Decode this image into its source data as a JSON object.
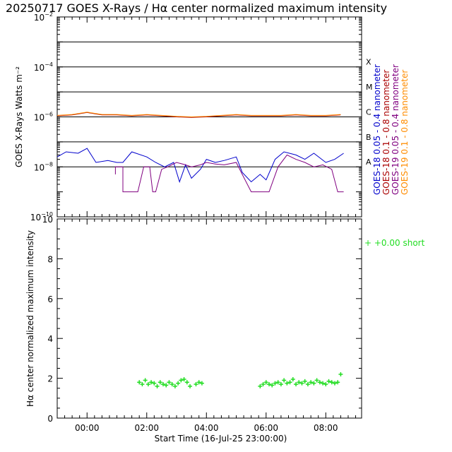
{
  "title": "20250717 GOES X-Rays / Hα center normalized maximum intensity",
  "chart_data": [
    {
      "type": "line",
      "name": "goes-xray-flux",
      "ylabel": "GOES X-Rays Watts m⁻²",
      "yscale": "log",
      "ylim": [
        1e-10,
        0.01
      ],
      "xlim": [
        -1.0,
        9.2
      ],
      "y_ticks": [
        {
          "exp": -10,
          "label": "10",
          "sup": "−10"
        },
        {
          "exp": -8,
          "label": "10",
          "sup": "−8"
        },
        {
          "exp": -6,
          "label": "10",
          "sup": "−6"
        },
        {
          "exp": -4,
          "label": "10",
          "sup": "−4"
        },
        {
          "exp": -2,
          "label": "10",
          "sup": "−2"
        }
      ],
      "flare_class_lines": [
        1e-08,
        1e-07,
        1e-06,
        1e-05,
        0.0001,
        0.001
      ],
      "flare_classes": [
        {
          "label": "A",
          "exp": -7.8
        },
        {
          "label": "B",
          "exp": -6.8
        },
        {
          "label": "C",
          "exp": -5.8
        },
        {
          "label": "M",
          "exp": -4.8
        },
        {
          "label": "X",
          "exp": -3.8
        }
      ],
      "legend": [
        {
          "label": "GOES-18 0.05 - 0.4 nanometer",
          "color": "#0000cc"
        },
        {
          "label": "GOES-18 0.1 - 0.8 nanometer",
          "color": "#aa0000"
        },
        {
          "label": "GOES-19 0.05 - 0.4 nanometer",
          "color": "#800080"
        },
        {
          "label": "GOES-19 0.1 - 0.8 nanometer",
          "color": "#ff8c00"
        }
      ],
      "series": [
        {
          "name": "GOES-18 0.1 - 0.8 nanometer",
          "color": "#aa0000",
          "x": [
            -1.0,
            -0.5,
            0.0,
            0.5,
            1.0,
            1.5,
            2.0,
            2.5,
            3.0,
            3.5,
            4.0,
            4.5,
            5.0,
            5.5,
            6.0,
            6.5,
            7.0,
            7.5,
            8.0,
            8.5
          ],
          "y": [
            1.1e-06,
            1.2e-06,
            1.5e-06,
            1.2e-06,
            1.2e-06,
            1.1e-06,
            1.2e-06,
            1.1e-06,
            1e-06,
            9.5e-07,
            1e-06,
            1.1e-06,
            1.2e-06,
            1.1e-06,
            1.1e-06,
            1.1e-06,
            1.2e-06,
            1.1e-06,
            1.1e-06,
            1.2e-06
          ]
        },
        {
          "name": "GOES-19 0.1 - 0.8 nanometer",
          "color": "#ff8c00",
          "x": [
            -1.0,
            -0.5,
            0.0,
            0.5,
            1.0,
            1.5,
            2.0,
            2.5,
            3.0,
            3.5,
            4.0,
            4.5,
            5.0,
            5.5,
            6.0,
            6.5,
            7.0,
            7.5,
            8.0,
            8.5
          ],
          "y": [
            1.15e-06,
            1.25e-06,
            1.55e-06,
            1.25e-06,
            1.25e-06,
            1.15e-06,
            1.25e-06,
            1.15e-06,
            1.05e-06,
            1e-06,
            1.05e-06,
            1.15e-06,
            1.25e-06,
            1.15e-06,
            1.15e-06,
            1.15e-06,
            1.25e-06,
            1.15e-06,
            1.15e-06,
            1.25e-06
          ]
        },
        {
          "name": "GOES-18 0.05 - 0.4 nanometer",
          "color": "#0000cc",
          "x": [
            -1.0,
            -0.7,
            -0.3,
            0.0,
            0.3,
            0.7,
            1.0,
            1.2,
            1.5,
            2.0,
            2.3,
            2.6,
            2.9,
            3.1,
            3.3,
            3.5,
            3.8,
            4.0,
            4.3,
            4.6,
            5.0,
            5.2,
            5.5,
            5.8,
            6.0,
            6.3,
            6.6,
            7.0,
            7.3,
            7.6,
            8.0,
            8.3,
            8.6
          ],
          "y": [
            2.5e-08,
            4e-08,
            3.5e-08,
            5.5e-08,
            1.5e-08,
            1.8e-08,
            1.5e-08,
            1.5e-08,
            4e-08,
            2.5e-08,
            1.5e-08,
            1e-08,
            1.5e-08,
            2.5e-09,
            1.2e-08,
            3.5e-09,
            8e-09,
            2e-08,
            1.5e-08,
            1.8e-08,
            2.5e-08,
            6e-09,
            2.5e-09,
            5e-09,
            3e-09,
            2e-08,
            4e-08,
            3e-08,
            2e-08,
            3.5e-08,
            1.5e-08,
            2e-08,
            3.5e-08
          ]
        },
        {
          "name": "GOES-19 0.05 - 0.4 nanometer",
          "color": "#800080",
          "x": [
            0.95,
            0.95,
            1.2,
            1.2,
            1.5,
            1.7,
            1.9,
            2.1,
            2.2,
            2.3,
            2.5,
            2.7,
            3.0,
            3.3,
            3.5,
            3.8,
            4.0,
            4.3,
            4.6,
            5.0,
            5.2,
            5.5,
            5.8,
            6.1,
            6.4,
            6.7,
            7.0,
            7.3,
            7.6,
            7.9,
            8.2,
            8.4,
            8.6
          ],
          "y": [
            5e-09,
            1e-08,
            1e-08,
            1e-09,
            1e-09,
            1e-09,
            1e-08,
            1e-08,
            1e-09,
            1e-09,
            8e-09,
            1e-08,
            1.5e-08,
            1.2e-08,
            1e-08,
            1.2e-08,
            1.5e-08,
            1.3e-08,
            1.2e-08,
            1.5e-08,
            5e-09,
            1e-09,
            1e-09,
            1e-09,
            1e-08,
            3e-08,
            2e-08,
            1.5e-08,
            1e-08,
            1.2e-08,
            8e-09,
            1e-09,
            1e-09
          ]
        }
      ]
    },
    {
      "type": "scatter",
      "name": "halpha-intensity",
      "ylabel": "Hα center normalized maximum intensity",
      "xlabel": "Start Time (16-Jul-25 23:00:00)",
      "ylim": [
        0,
        10
      ],
      "xlim": [
        -1.0,
        9.2
      ],
      "y_ticks": [
        0,
        2,
        4,
        6,
        8,
        10
      ],
      "x_ticks": [
        {
          "value": 0,
          "label": "00:00"
        },
        {
          "value": 2,
          "label": "02:00"
        },
        {
          "value": 4,
          "label": "04:00"
        },
        {
          "value": 6,
          "label": "06:00"
        },
        {
          "value": 8,
          "label": "08:00"
        }
      ],
      "legend": [
        {
          "label": "+  +0.00 short",
          "color": "#22dd22"
        }
      ],
      "series": [
        {
          "name": "+0.00 short",
          "color": "#22dd22",
          "marker": "+",
          "x": [
            1.75,
            1.85,
            1.95,
            2.05,
            2.15,
            2.25,
            2.35,
            2.45,
            2.55,
            2.65,
            2.75,
            2.85,
            2.95,
            3.05,
            3.15,
            3.25,
            3.35,
            3.45,
            3.65,
            3.75,
            3.85,
            5.8,
            5.9,
            6.0,
            6.1,
            6.2,
            6.3,
            6.4,
            6.5,
            6.6,
            6.7,
            6.8,
            6.9,
            7.0,
            7.1,
            7.2,
            7.3,
            7.4,
            7.5,
            7.6,
            7.7,
            7.8,
            7.9,
            8.0,
            8.1,
            8.2,
            8.3,
            8.4,
            8.5
          ],
          "y": [
            1.8,
            1.7,
            1.9,
            1.7,
            1.8,
            1.75,
            1.6,
            1.8,
            1.7,
            1.65,
            1.8,
            1.7,
            1.6,
            1.75,
            1.9,
            1.95,
            1.8,
            1.6,
            1.7,
            1.8,
            1.75,
            1.6,
            1.7,
            1.8,
            1.7,
            1.65,
            1.75,
            1.8,
            1.7,
            1.9,
            1.75,
            1.8,
            1.95,
            1.7,
            1.8,
            1.75,
            1.85,
            1.7,
            1.8,
            1.75,
            1.9,
            1.8,
            1.75,
            1.7,
            1.85,
            1.8,
            1.75,
            1.8,
            2.2
          ]
        }
      ]
    }
  ]
}
